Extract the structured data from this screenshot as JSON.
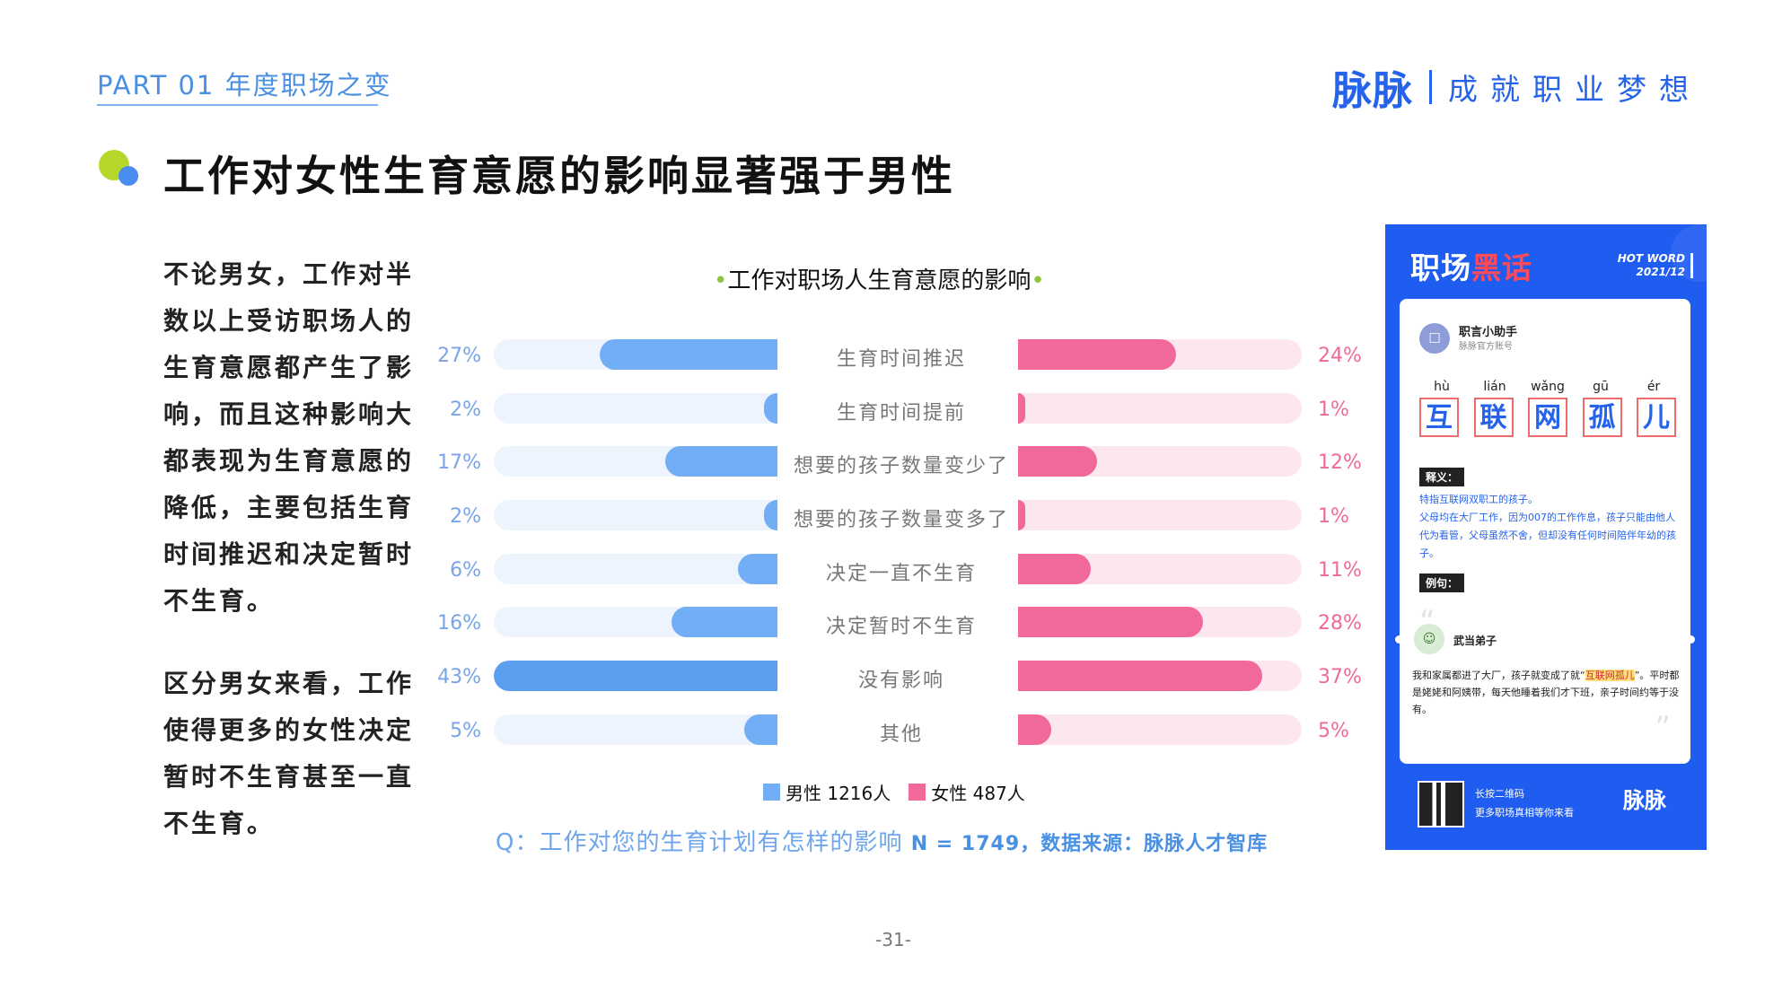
{
  "header": {
    "part_label": "PART 01 年度职场之变",
    "brand_logo": "脉脉",
    "brand_slogan": "成就职业梦想"
  },
  "page_title": "工作对女性生育意愿的影响显著强于男性",
  "left_text": {
    "paragraph1": "不论男女，工作对半数以上受访职场人的生育意愿都产生了影响，而且这种影响大都表现为生育意愿的降低，主要包括生育时间推迟和决定暂时不生育。",
    "paragraph2": "区分男女来看，工作使得更多的女性决定暂时不生育甚至一直不生育。"
  },
  "chart_data": {
    "type": "bar",
    "title": "工作对职场人生育意愿的影响",
    "categories": [
      "生育时间推迟",
      "生育时间提前",
      "想要的孩子数量变少了",
      "想要的孩子数量变多了",
      "决定一直不生育",
      "决定暂时不生育",
      "没有影响",
      "其他"
    ],
    "series": [
      {
        "name": "男性 1216人",
        "values": [
          27,
          2,
          17,
          2,
          6,
          16,
          43,
          5
        ],
        "labels": [
          "27%",
          "2%",
          "17%",
          "2%",
          "6%",
          "16%",
          "43%",
          "5%"
        ],
        "color": "#72aef6"
      },
      {
        "name": "女性 487人",
        "values": [
          24,
          1,
          12,
          1,
          11,
          28,
          37,
          5
        ],
        "labels": [
          "24%",
          "1%",
          "12%",
          "1%",
          "11%",
          "28%",
          "37%",
          "5%"
        ],
        "color": "#f1699a"
      }
    ],
    "xlim": [
      0,
      43
    ],
    "legend": "bottom"
  },
  "source": {
    "question": "Q：工作对您的生育计划有怎样的影响",
    "note": "N = 1749，数据来源：脉脉人才智库"
  },
  "page_number": "-31-",
  "poster": {
    "title_white": "职场",
    "title_red": "黑话",
    "hot_word": "HOT WORD",
    "date": "2021/12",
    "account_name": "职言小助手",
    "account_sub": "脉脉官方账号",
    "pinyin": [
      "hù",
      "lián",
      "wǎng",
      "gū",
      "ér"
    ],
    "chars": [
      "互",
      "联",
      "网",
      "孤",
      "儿"
    ],
    "def_tag": "释义：",
    "def_line1": "特指互联网双职工的孩子。",
    "def_line2": "父母均在大厂工作，因为007的工作作息，孩子只能由他人代为看管，父母虽然不舍，但却没有任何时间陪伴年幼的孩子。",
    "ex_tag": "例句：",
    "ex_user": "武当弟子",
    "ex_text_a": "我和家属都进了大厂，孩子就变成了就“",
    "ex_text_hl": "互联网孤儿",
    "ex_text_b": "”。平时都是姥姥和阿姨带，每天他睡着我们才下班，亲子时间约等于没有。",
    "qr_line1": "长按二维码",
    "qr_line2": "更多职场真相等你来看",
    "logo": "脉脉"
  }
}
